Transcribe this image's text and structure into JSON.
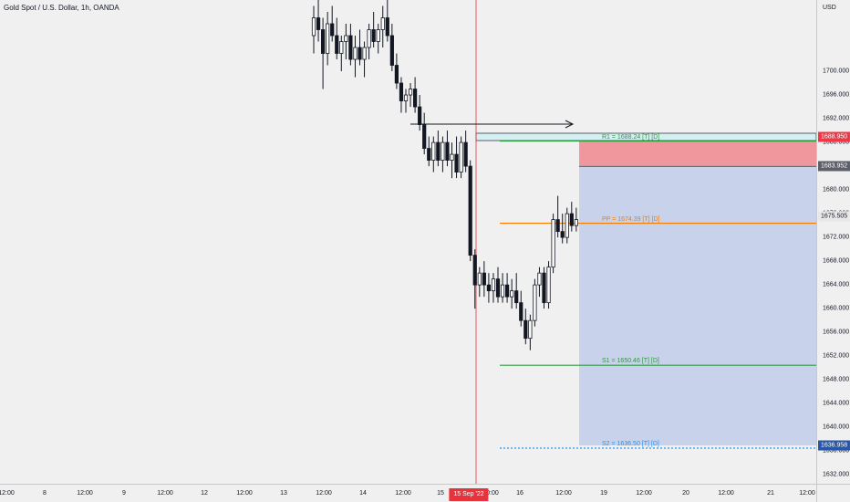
{
  "symbol": {
    "title": "Gold Spot / U.S. Dollar, 1h, OANDA"
  },
  "price_axis": {
    "currency": "USD",
    "ticks": [
      "1700.000",
      "1696.000",
      "1692.000",
      "1688.000",
      "1684.000",
      "1680.000",
      "1676.000",
      "1672.000",
      "1668.000",
      "1664.000",
      "1660.000",
      "1656.000",
      "1652.000",
      "1648.000",
      "1644.000",
      "1640.000",
      "1636.000",
      "1632.000"
    ],
    "badges": [
      {
        "label": "1688.950",
        "color": "#f23645"
      },
      {
        "label": "1683.952",
        "color": "#5d606b"
      },
      {
        "label": "1675.505",
        "color": "#e8e8e8",
        "text_color": "#131722"
      },
      {
        "label": "1636.958",
        "color": "#2757a7"
      }
    ]
  },
  "time_axis": {
    "ticks": [
      "12:00",
      "8",
      "12:00",
      "9",
      "12:00",
      "12",
      "12:00",
      "13",
      "12:00",
      "14",
      "12:00",
      "15",
      "10:00",
      "16",
      "12:00",
      "19",
      "12:00",
      "20",
      "12:00",
      "21",
      "12:00"
    ],
    "cursor_badge": "15 Sep '22"
  },
  "levels": [
    {
      "label": "R1 = 1688.24 [T] [D]",
      "price": 1688.24,
      "color": "#2e9a3e",
      "style": "solid"
    },
    {
      "label": "PP = 1674.39 [T] [D]",
      "price": 1674.39,
      "color": "#f57c00",
      "style": "solid"
    },
    {
      "label": "S1 = 1650.46 [T] [D]",
      "price": 1650.46,
      "color": "#2e9a3e",
      "style": "solid"
    },
    {
      "label": "S2 = 1636.50 [T] [D]",
      "price": 1636.5,
      "color": "#2196f3",
      "style": "dotted"
    }
  ],
  "position_tool": {
    "entry": 1683.952,
    "stop": 1688.95,
    "target": 1636.958,
    "stop_color": "#f08c93",
    "target_color": "#c5d0ea"
  },
  "chart_data": {
    "type": "candlestick",
    "title": "Gold Spot / U.S. Dollar, 1h, OANDA",
    "xlabel": "",
    "ylabel": "",
    "ylim": [
      1630.5,
      1712
    ],
    "grid": false,
    "up_color": "#ffffff",
    "down_color": "#131722",
    "series": [
      {
        "values": [
          [
            1706,
            1711,
            1703,
            1709
          ],
          [
            1709,
            1712,
            1705,
            1707
          ],
          [
            1707,
            1709,
            1697,
            1703
          ],
          [
            1703,
            1710,
            1701,
            1708
          ],
          [
            1708,
            1711,
            1705,
            1706
          ],
          [
            1706,
            1709,
            1702,
            1703
          ],
          [
            1703,
            1706,
            1700,
            1705
          ],
          [
            1705,
            1708,
            1702,
            1706
          ],
          [
            1706,
            1708,
            1701,
            1702
          ],
          [
            1702,
            1706,
            1699,
            1704
          ],
          [
            1704,
            1707,
            1701,
            1702
          ],
          [
            1702,
            1705,
            1699,
            1704
          ],
          [
            1704,
            1708,
            1702,
            1707
          ],
          [
            1707,
            1710,
            1704,
            1705
          ],
          [
            1705,
            1708,
            1703,
            1707
          ],
          [
            1707,
            1711,
            1704,
            1709
          ],
          [
            1709,
            1712,
            1705,
            1706
          ],
          [
            1706,
            1708,
            1700,
            1701
          ],
          [
            1701,
            1703,
            1697,
            1698
          ],
          [
            1698,
            1699,
            1693,
            1695
          ],
          [
            1695,
            1697,
            1693,
            1696
          ],
          [
            1696,
            1698,
            1694,
            1697
          ],
          [
            1697,
            1699,
            1693,
            1694
          ],
          [
            1694,
            1696,
            1690,
            1691
          ],
          [
            1691,
            1693,
            1686,
            1687
          ],
          [
            1687,
            1689,
            1684,
            1685
          ],
          [
            1685,
            1689,
            1683,
            1688
          ],
          [
            1688,
            1690,
            1684,
            1685
          ],
          [
            1685,
            1689,
            1683,
            1688
          ],
          [
            1688,
            1690,
            1684,
            1685
          ],
          [
            1685,
            1688,
            1682,
            1686
          ],
          [
            1686,
            1689,
            1682,
            1683
          ],
          [
            1683,
            1689,
            1682,
            1688
          ],
          [
            1688,
            1690,
            1683,
            1684
          ],
          [
            1684,
            1685,
            1668,
            1669
          ],
          [
            1669,
            1670,
            1660,
            1664
          ],
          [
            1664,
            1667,
            1662,
            1666
          ],
          [
            1666,
            1668,
            1662,
            1664
          ],
          [
            1664,
            1666,
            1661,
            1663
          ],
          [
            1663,
            1666,
            1661,
            1665
          ],
          [
            1665,
            1667,
            1661,
            1662
          ],
          [
            1662,
            1666,
            1661,
            1664
          ],
          [
            1664,
            1666,
            1661,
            1662
          ],
          [
            1662,
            1665,
            1660,
            1663
          ],
          [
            1663,
            1666,
            1660,
            1661
          ],
          [
            1661,
            1663,
            1657,
            1658
          ],
          [
            1658,
            1660,
            1654,
            1655
          ],
          [
            1655,
            1659,
            1653,
            1658
          ],
          [
            1658,
            1665,
            1657,
            1664
          ],
          [
            1664,
            1667,
            1662,
            1666
          ],
          [
            1666,
            1667,
            1660,
            1661
          ],
          [
            1661,
            1668,
            1660,
            1667
          ],
          [
            1667,
            1676,
            1666,
            1675
          ],
          [
            1675,
            1679,
            1672,
            1673
          ],
          [
            1673,
            1676,
            1671,
            1672
          ],
          [
            1672,
            1677,
            1671,
            1676
          ],
          [
            1676,
            1678,
            1673,
            1674
          ],
          [
            1674,
            1677,
            1673,
            1675
          ]
        ]
      }
    ]
  }
}
